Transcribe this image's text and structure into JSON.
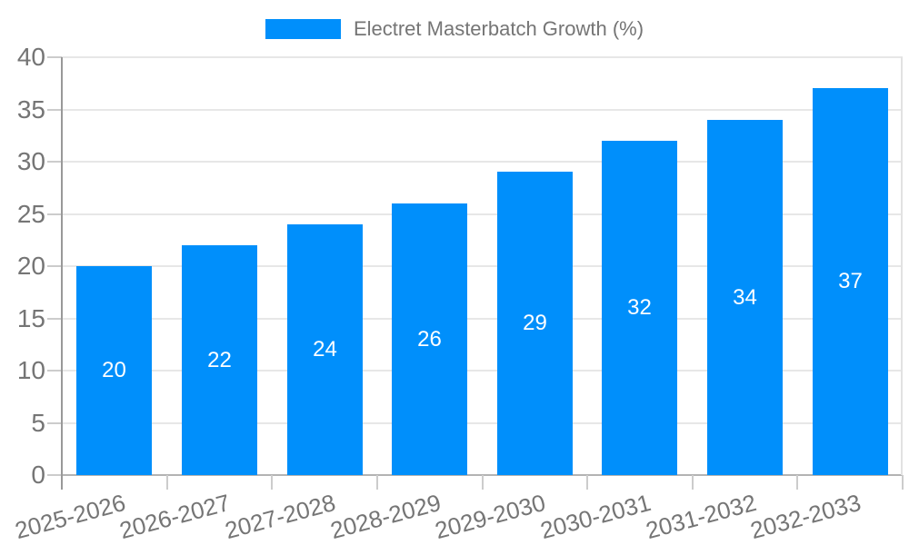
{
  "chart_data": {
    "type": "bar",
    "title": "Electret Masterbatch Growth (%)",
    "categories": [
      "2025-2026",
      "2026-2027",
      "2027-2028",
      "2028-2029",
      "2029-2030",
      "2030-2031",
      "2031-2032",
      "2032-2033"
    ],
    "series": [
      {
        "name": "Electret Masterbatch Growth (%)",
        "values": [
          20,
          22,
          24,
          26,
          29,
          32,
          34,
          37
        ]
      }
    ],
    "bar_value_labels": [
      "20",
      "22",
      "24",
      "26",
      "29",
      "32",
      "34",
      "37"
    ],
    "xlabel": "",
    "ylabel": "",
    "ylim": [
      0,
      40
    ],
    "yticks": [
      0,
      5,
      10,
      15,
      20,
      25,
      30,
      35,
      40
    ],
    "grid": true,
    "legend_position": "top-center",
    "x_label_rotation_deg": -15
  },
  "colors": {
    "bar": "#008ffb",
    "bar_label": "#ffffff",
    "axis_text": "#757575",
    "legend_text": "#757575",
    "gridline": "#e7e7e7",
    "baseline": "#b3b3b3",
    "axis_line": "#999999",
    "tick": "#cccccc",
    "right_border": "#e2e2e2",
    "background": "#ffffff"
  }
}
